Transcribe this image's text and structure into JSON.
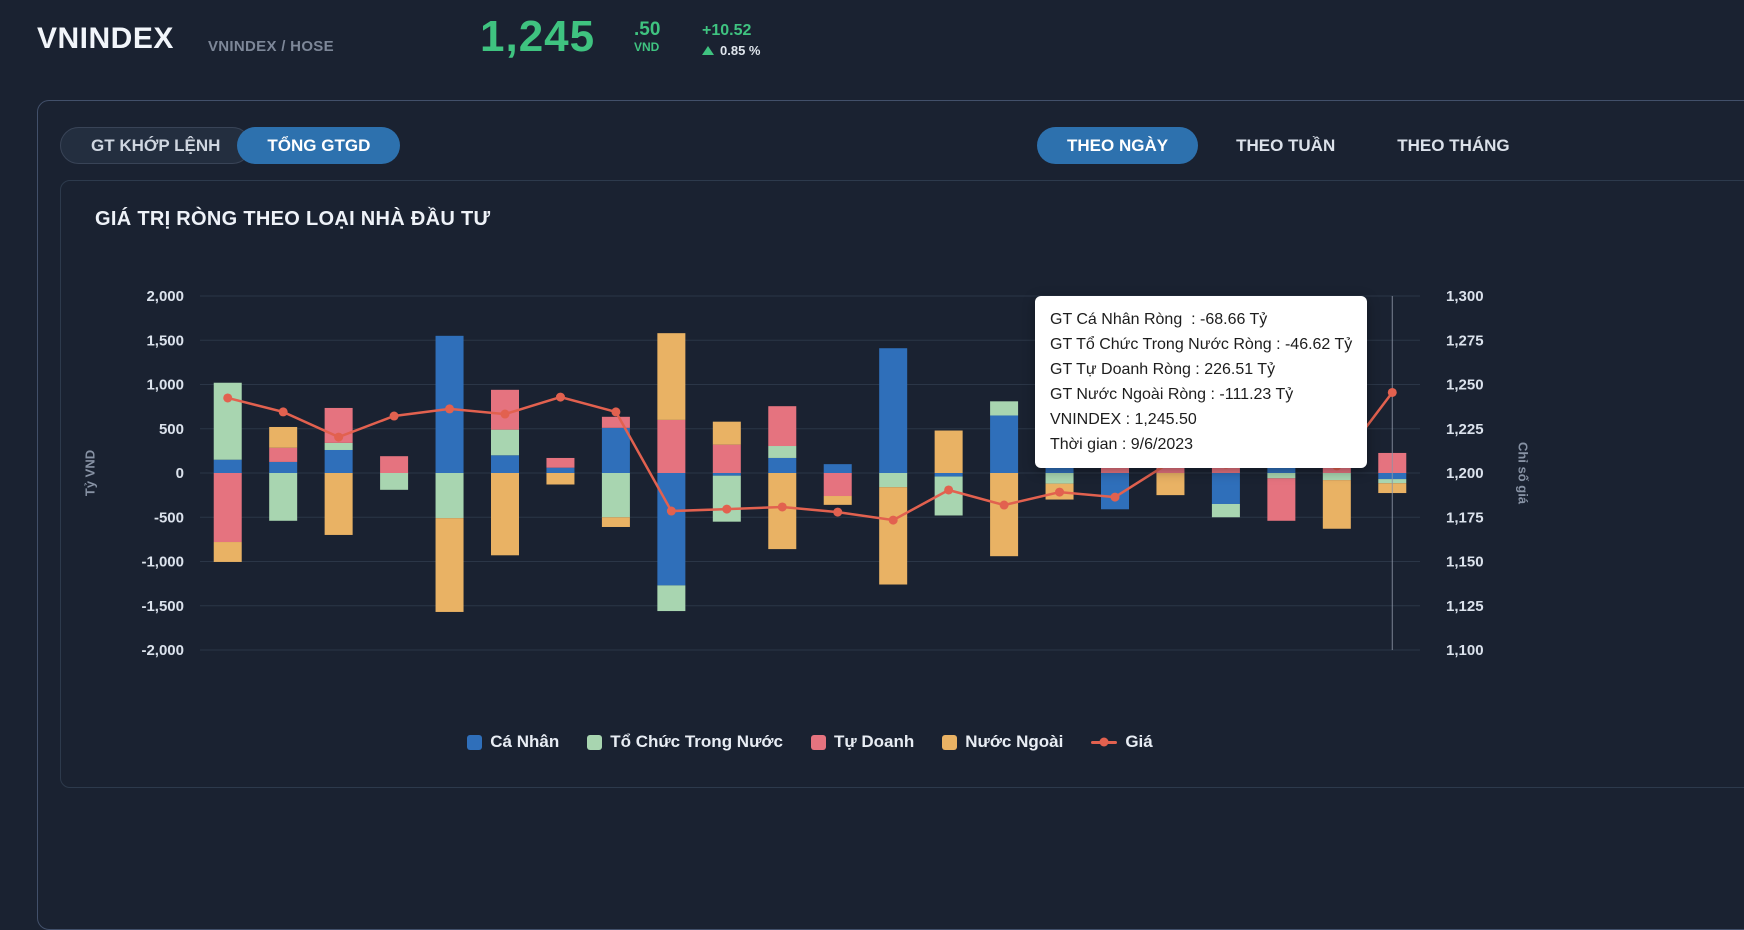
{
  "header": {
    "symbol": "VNINDEX",
    "exchange": "VNINDEX / HOSE",
    "price_int": "1,245",
    "price_dec": ".50",
    "currency": "VND",
    "change": "+10.52",
    "change_pct": "0.85 %"
  },
  "tabs": {
    "left": [
      {
        "label": "GT KHỚP LỆNH",
        "active": false
      },
      {
        "label": "TỔNG GTGD",
        "active": true
      }
    ],
    "right": [
      {
        "label": "THEO NGÀY",
        "active": true
      },
      {
        "label": "THEO TUẦN",
        "active": false
      },
      {
        "label": "THEO THÁNG",
        "active": false
      }
    ]
  },
  "chart": {
    "title": "GIÁ TRỊ RÒNG THEO LOẠI NHÀ ĐẦU TƯ",
    "y_left_label": "Tỷ VND",
    "y_right_label": "Chỉ số giá"
  },
  "tooltip": {
    "lines": [
      "GT Cá Nhân Ròng  : -68.66 Tỷ",
      "GT Tổ Chức Trong Nước Ròng : -46.62 Tỷ",
      "GT Tự Doanh Ròng : 226.51 Tỷ",
      "GT Nước Ngoài Ròng : -111.23 Tỷ",
      "VNINDEX : 1,245.50",
      "Thời gian : 9/6/2023"
    ]
  },
  "colors": {
    "accent_blue": "#2d71ae",
    "price_green": "#3fc380",
    "tooltip_bg": "#ffffff",
    "grid_line": "#2b3647"
  },
  "chart_data": {
    "type": "bar",
    "subtype": "stacked-bar-with-line",
    "title": "GIÁ TRỊ RÒNG THEO LOẠI NHÀ ĐẦU TƯ",
    "ylabel_left": "Tỷ VND",
    "ylabel_right": "Chỉ số giá",
    "unit": "Tỷ VND",
    "ylim_left": [
      -2000,
      2000
    ],
    "ylim_right": [
      1100,
      1300
    ],
    "yticks_left": [
      "2,000",
      "1,500",
      "1,000",
      "500",
      "0",
      "-500",
      "-1,000",
      "-1,500",
      "-2,000"
    ],
    "yticks_right": [
      "1,300",
      "1,275",
      "1,250",
      "1,225",
      "1,200",
      "1,175",
      "1,150",
      "1,125",
      "1,100"
    ],
    "grid": true,
    "legend_position": "bottom",
    "num_points": 22,
    "hover_index": 21,
    "hover_date": "9/6/2023",
    "series": [
      {
        "name": "Cá Nhân",
        "color": "#2f6fba",
        "values": [
          150,
          125,
          260,
          0,
          1550,
          200,
          60,
          510,
          -1270,
          -30,
          170,
          100,
          1410,
          -40,
          650,
          350,
          -410,
          0,
          -350,
          100,
          0,
          -68.66
        ]
      },
      {
        "name": "Tổ Chức Trong Nước",
        "color": "#a8d5b0",
        "values": [
          870,
          -540,
          80,
          -190,
          -510,
          290,
          0,
          -500,
          -290,
          -520,
          135,
          0,
          -160,
          -440,
          160,
          -120,
          0,
          0,
          -150,
          -60,
          -80,
          -46.62
        ]
      },
      {
        "name": "Tự Doanh",
        "color": "#e5737f",
        "values": [
          -780,
          160,
          395,
          190,
          0,
          450,
          110,
          125,
          600,
          320,
          450,
          -260,
          0,
          0,
          0,
          350,
          120,
          565,
          200,
          -480,
          120,
          226.51
        ]
      },
      {
        "name": "Nước Ngoài",
        "color": "#e9b264",
        "values": [
          -225,
          235,
          -700,
          0,
          -1060,
          -930,
          -130,
          -110,
          980,
          260,
          -860,
          -100,
          -1100,
          480,
          -940,
          -180,
          150,
          -250,
          0,
          0,
          -550,
          -111.23
        ]
      }
    ],
    "line": {
      "name": "Giá",
      "color": "#e2614f",
      "axis": "right",
      "values": [
        1242.4,
        1234.5,
        1220.3,
        1232.2,
        1236.2,
        1233.3,
        1242.9,
        1234.5,
        1178.5,
        1179.6,
        1180.8,
        1177.9,
        1173.4,
        1190.4,
        1181.9,
        1189.2,
        1186.4,
        1206.2,
        1205.0,
        1207.0,
        1204.0,
        1245.5
      ]
    }
  }
}
